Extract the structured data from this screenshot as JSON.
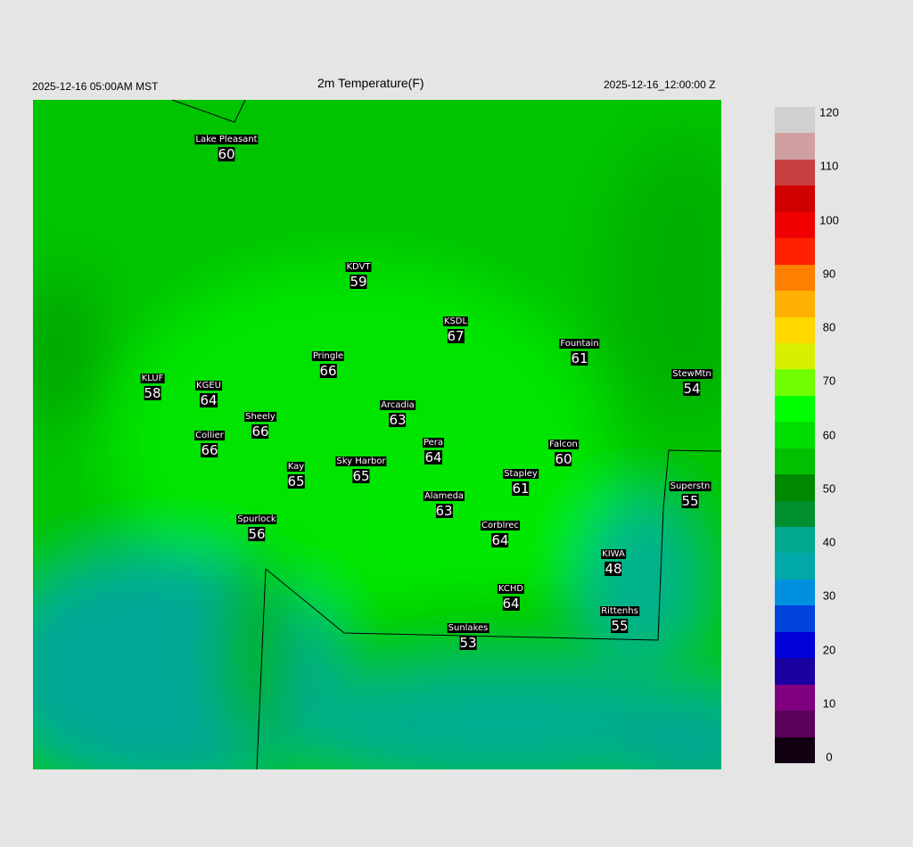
{
  "header": {
    "title": "2m Temperature(F)",
    "local_time": "2025-12-16 05:00AM MST",
    "valid_time": "2025-12-16_12:00:00 Z"
  },
  "colorbar": {
    "ticks": [
      "0",
      "10",
      "20",
      "30",
      "40",
      "50",
      "60",
      "70",
      "80",
      "90",
      "100",
      "110",
      "120"
    ],
    "min": 0,
    "max": 120,
    "colors": [
      "#100010",
      "#5a005a",
      "#800080",
      "#1a00a0",
      "#0000d8",
      "#0044dd",
      "#0090e0",
      "#00a8a8",
      "#00a890",
      "#009030",
      "#008800",
      "#00c000",
      "#00e000",
      "#00ff00",
      "#70ff00",
      "#d8f000",
      "#ffd800",
      "#ffb000",
      "#ff8000",
      "#ff2000",
      "#f00000",
      "#d00000",
      "#c84040",
      "#d0a0a0",
      "#d0d0d0"
    ]
  },
  "map": {
    "field_colors": {
      "base": "#00c400",
      "warm": "#00e800",
      "cool": "#00a896",
      "dark": "#00a400"
    },
    "stations": [
      {
        "name": "Lake Pleasant",
        "value": "60"
      },
      {
        "name": "KDVT",
        "value": "59"
      },
      {
        "name": "KSDL",
        "value": "67"
      },
      {
        "name": "Fountain",
        "value": "61"
      },
      {
        "name": "Pringle",
        "value": "66"
      },
      {
        "name": "StewMtn",
        "value": "54"
      },
      {
        "name": "KLUF",
        "value": "58"
      },
      {
        "name": "KGEU",
        "value": "64"
      },
      {
        "name": "Arcadia",
        "value": "63"
      },
      {
        "name": "Sheely",
        "value": "66"
      },
      {
        "name": "Collier",
        "value": "66"
      },
      {
        "name": "Pera",
        "value": "64"
      },
      {
        "name": "Falcon",
        "value": "60"
      },
      {
        "name": "Kay",
        "value": "65"
      },
      {
        "name": "Sky Harbor",
        "value": "65"
      },
      {
        "name": "Stapley",
        "value": "61"
      },
      {
        "name": "Superstn",
        "value": "55"
      },
      {
        "name": "Alameda",
        "value": "63"
      },
      {
        "name": "Spurlock",
        "value": "56"
      },
      {
        "name": "Corblrec",
        "value": "64"
      },
      {
        "name": "KIWA",
        "value": "48"
      },
      {
        "name": "KCHD",
        "value": "64"
      },
      {
        "name": "Rittenhs",
        "value": "55"
      },
      {
        "name": "Sunlakes",
        "value": "53"
      }
    ]
  }
}
